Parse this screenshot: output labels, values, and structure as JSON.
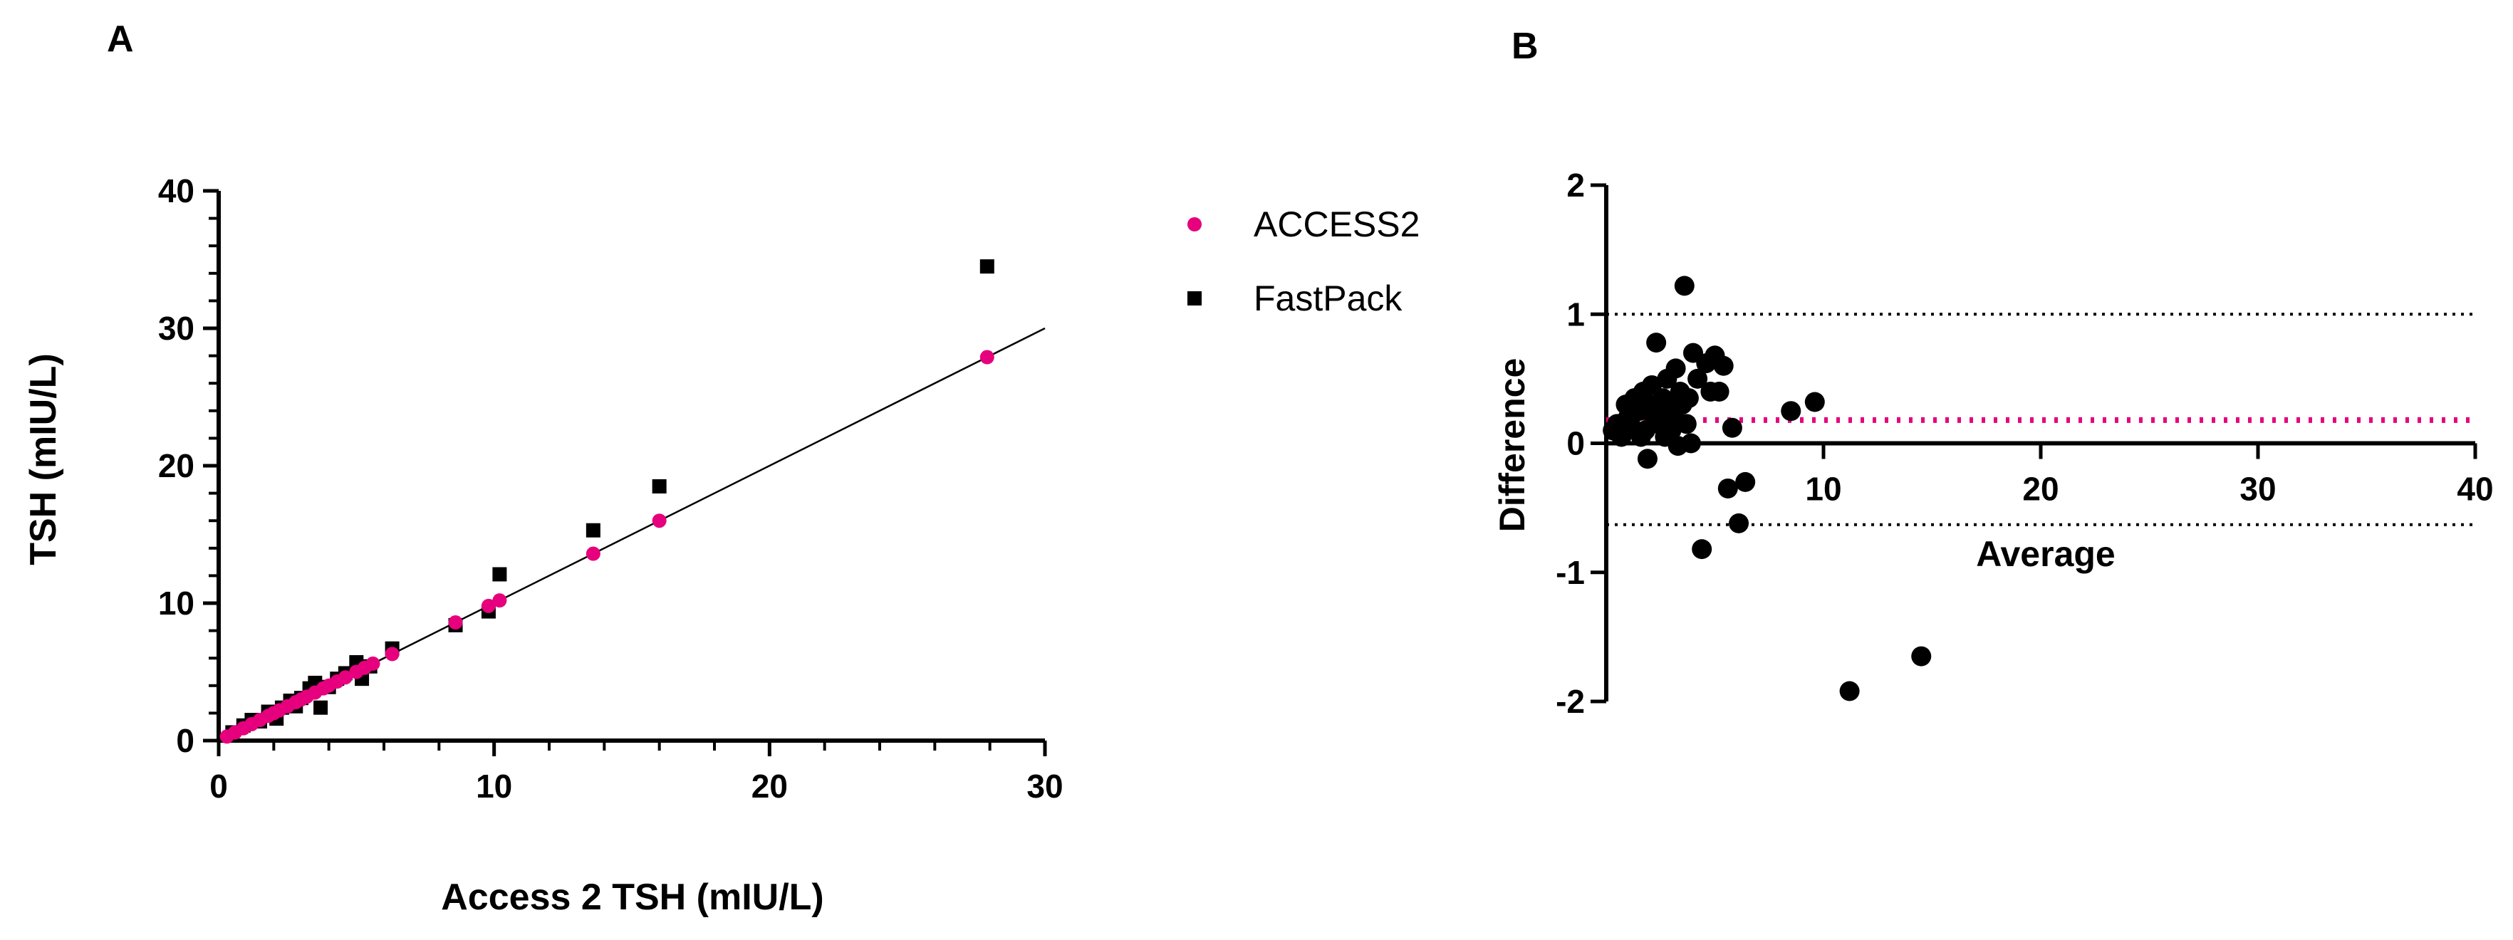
{
  "chart_data": [
    {
      "panel": "A",
      "type": "scatter",
      "xlabel": "Access 2 TSH (mIU/L)",
      "ylabel": "TSH (mIU/L)",
      "xlim": [
        0,
        30
      ],
      "ylim": [
        0,
        40
      ],
      "xticks": [
        0,
        10,
        20,
        30
      ],
      "yticks": [
        0,
        10,
        20,
        30,
        40
      ],
      "legend_position": "right",
      "reference_line": {
        "x": [
          0,
          30
        ],
        "y": [
          0,
          30
        ]
      },
      "series": [
        {
          "name": "ACCESS2",
          "color": "#e6007e",
          "marker": "circle",
          "x": [
            0.3,
            0.6,
            0.9,
            1.2,
            1.5,
            1.8,
            2.0,
            2.2,
            2.5,
            2.8,
            3.0,
            3.2,
            3.5,
            3.8,
            4.0,
            4.3,
            4.6,
            5.0,
            5.3,
            5.6,
            6.3,
            8.6,
            9.8,
            10.2,
            13.6,
            16.0,
            27.9
          ],
          "y": [
            0.3,
            0.6,
            0.9,
            1.2,
            1.5,
            1.8,
            2.0,
            2.2,
            2.5,
            2.8,
            3.0,
            3.2,
            3.5,
            3.8,
            4.0,
            4.3,
            4.6,
            5.0,
            5.3,
            5.6,
            6.3,
            8.6,
            9.8,
            10.2,
            13.6,
            16.0,
            27.9
          ]
        },
        {
          "name": "FastPack",
          "color": "#000000",
          "marker": "square",
          "x": [
            0.5,
            0.9,
            1.2,
            1.5,
            1.8,
            2.1,
            2.3,
            2.6,
            2.8,
            3.0,
            3.3,
            3.5,
            3.7,
            4.0,
            4.3,
            4.6,
            5.0,
            5.2,
            5.5,
            6.3,
            8.6,
            9.8,
            10.2,
            13.6,
            16.0,
            27.9
          ],
          "y": [
            0.6,
            1.1,
            1.5,
            1.4,
            2.1,
            1.6,
            2.4,
            2.9,
            2.5,
            3.1,
            3.8,
            4.2,
            2.4,
            3.9,
            4.5,
            4.9,
            5.7,
            4.5,
            5.4,
            6.7,
            8.4,
            9.4,
            12.1,
            15.3,
            18.5,
            34.5
          ]
        }
      ]
    },
    {
      "panel": "B",
      "type": "scatter",
      "xlabel": "Average",
      "ylabel": "Difference",
      "xlim": [
        0,
        40
      ],
      "ylim": [
        -2,
        2
      ],
      "xticks": [
        10,
        20,
        30,
        40
      ],
      "yticks": [
        -2,
        -1,
        0,
        1,
        2
      ],
      "mean_bias": 0.18,
      "upper_loa": 1.0,
      "lower_loa": -0.63,
      "series": [
        {
          "name": "Difference",
          "color": "#000000",
          "marker": "circle",
          "x": [
            0.3,
            0.5,
            0.7,
            0.9,
            1.0,
            1.2,
            1.3,
            1.5,
            1.6,
            1.7,
            1.8,
            1.9,
            2.0,
            2.1,
            2.2,
            2.3,
            2.4,
            2.5,
            2.6,
            2.7,
            2.8,
            2.9,
            3.0,
            3.1,
            3.2,
            3.3,
            3.4,
            3.5,
            3.6,
            3.7,
            3.8,
            3.9,
            4.0,
            4.2,
            4.4,
            4.6,
            4.8,
            5.0,
            5.2,
            5.4,
            5.6,
            5.8,
            6.1,
            6.4,
            8.5,
            9.6,
            11.2,
            14.5
          ],
          "y": [
            0.1,
            0.15,
            0.05,
            0.3,
            0.2,
            0.12,
            0.35,
            0.25,
            0.05,
            0.4,
            0.1,
            -0.12,
            0.3,
            0.45,
            0.2,
            0.78,
            0.15,
            0.25,
            0.35,
            0.05,
            0.5,
            0.3,
            0.1,
            0.22,
            0.58,
            -0.02,
            0.4,
            0.3,
            1.22,
            0.15,
            0.35,
            0.0,
            0.7,
            0.5,
            -0.82,
            0.62,
            0.4,
            0.68,
            0.4,
            0.6,
            -0.35,
            0.12,
            -0.62,
            -0.3,
            0.25,
            0.32,
            -1.92,
            -1.65
          ]
        }
      ]
    }
  ]
}
